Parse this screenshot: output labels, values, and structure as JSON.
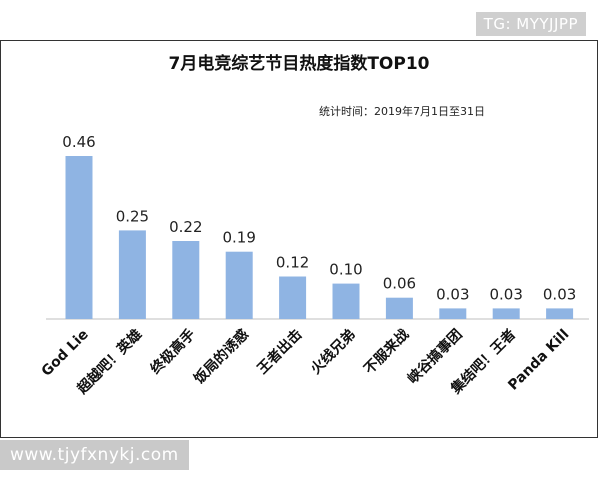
{
  "watermark_top": "TG: MYYJJPP",
  "watermark_bottom": "www.tjyfxnykj.com",
  "chart_data": {
    "type": "bar",
    "title": "7月电竞综艺节目热度指数TOP10",
    "note": "统计时间：2019年7月1日至31日",
    "categories": [
      "God Lie",
      "超越吧！英雄",
      "终极高手",
      "饭局的诱惑",
      "王者出击",
      "火线兄弟",
      "不服来战",
      "峡谷搞事团",
      "集结吧！王者",
      "Panda Kill"
    ],
    "values": [
      0.46,
      0.25,
      0.22,
      0.19,
      0.12,
      0.1,
      0.06,
      0.03,
      0.03,
      0.03
    ],
    "value_labels": [
      "0.46",
      "0.25",
      "0.22",
      "0.19",
      "0.12",
      "0.10",
      "0.06",
      "0.03",
      "0.03",
      "0.03"
    ],
    "bar_color": "#8fb4e3",
    "axis_color": "#bfbfbf",
    "ylim": [
      0,
      0.46
    ],
    "grid": false,
    "legend": "none"
  }
}
